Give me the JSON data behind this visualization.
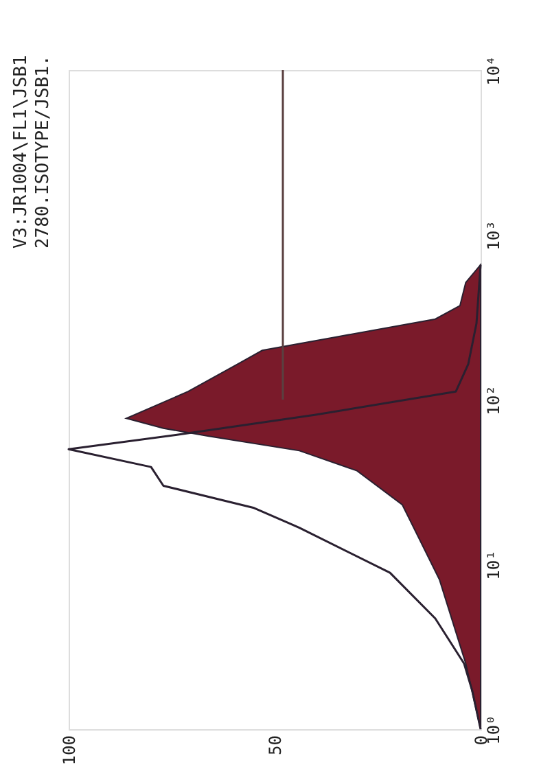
{
  "chart_data": {
    "type": "area",
    "title": "V3:JR1004\\FL1\\JSB1",
    "subtitle": "2780.ISOTYPE/JSB1.",
    "orientation": "horizontal",
    "log": "y",
    "grid": false,
    "xlim": [
      100,
      0
    ],
    "xticks": [
      100,
      50,
      0
    ],
    "ylim": [
      1,
      10000
    ],
    "yticks": [
      {
        "value": 1,
        "label": "10⁰"
      },
      {
        "value": 10,
        "label": "10¹"
      },
      {
        "value": 100,
        "label": "10²"
      },
      {
        "value": 1000,
        "label": "10³"
      },
      {
        "value": 10000,
        "label": "10⁴"
      }
    ],
    "series": [
      {
        "color": "#7a1a2a",
        "x": [
          1,
          2.5,
          8.1,
          23,
          37,
          49,
          60,
          67,
          77,
          112,
          164,
          199,
          240,
          308,
          372,
          514,
          658
        ],
        "values": [
          0,
          3.6,
          10,
          19,
          30,
          44,
          66,
          77,
          86,
          71,
          59,
          53,
          35,
          11,
          5,
          3.6,
          0
        ]
      },
      {
        "type": "line",
        "color": "#2a2030",
        "x": [
          1,
          1.7,
          2.5,
          4.7,
          8.9,
          16.7,
          22,
          30,
          39,
          50,
          61,
          81,
          112,
          164,
          290,
          658
        ],
        "values": [
          0,
          2,
          4,
          11,
          22,
          44,
          55,
          77,
          80,
          100,
          74,
          40,
          6,
          3,
          1,
          0
        ]
      },
      {
        "type": "line",
        "color": "#5a4040",
        "x": [
          100,
          10000
        ],
        "values": [
          48,
          48
        ]
      }
    ]
  }
}
